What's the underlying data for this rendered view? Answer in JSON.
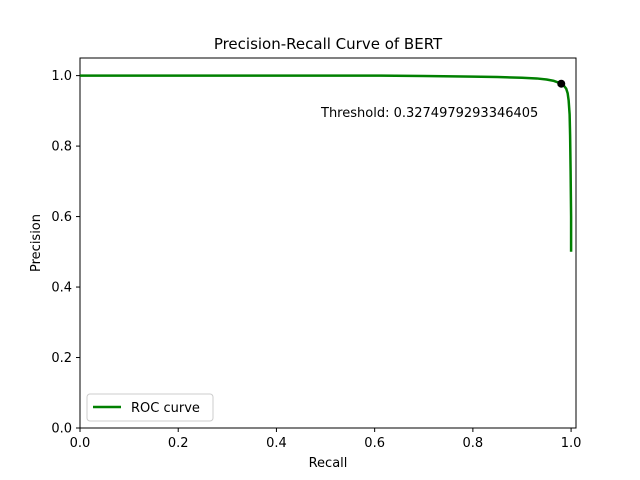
{
  "chart_data": {
    "type": "line",
    "title": "Precision-Recall Curve of BERT",
    "xlabel": "Recall",
    "ylabel": "Precision",
    "xlim": [
      0.0,
      1.0
    ],
    "ylim": [
      0.0,
      1.05
    ],
    "xticks": [
      "0.0",
      "0.2",
      "0.4",
      "0.6",
      "0.8",
      "1.0"
    ],
    "yticks": [
      "0.0",
      "0.2",
      "0.4",
      "0.6",
      "0.8",
      "1.0"
    ],
    "grid": false,
    "legend_position": "lower-left",
    "series": [
      {
        "name": "ROC curve",
        "color": "#008000",
        "x": [
          0.0,
          0.1,
          0.2,
          0.3,
          0.4,
          0.5,
          0.6,
          0.7,
          0.8,
          0.85,
          0.9,
          0.93,
          0.95,
          0.965,
          0.975,
          0.98,
          0.985,
          0.99,
          0.993,
          0.995,
          0.997,
          0.998,
          0.999,
          1.0,
          1.0
        ],
        "y": [
          1.0,
          1.0,
          1.0,
          1.0,
          1.0,
          1.0,
          1.0,
          0.999,
          0.997,
          0.996,
          0.994,
          0.992,
          0.989,
          0.985,
          0.98,
          0.977,
          0.972,
          0.963,
          0.95,
          0.93,
          0.89,
          0.83,
          0.73,
          0.6,
          0.5
        ]
      }
    ],
    "highlight_point": {
      "x": 0.98,
      "y": 0.977,
      "color": "#000000"
    },
    "annotation": "Threshold: 0.3274979293346405"
  }
}
